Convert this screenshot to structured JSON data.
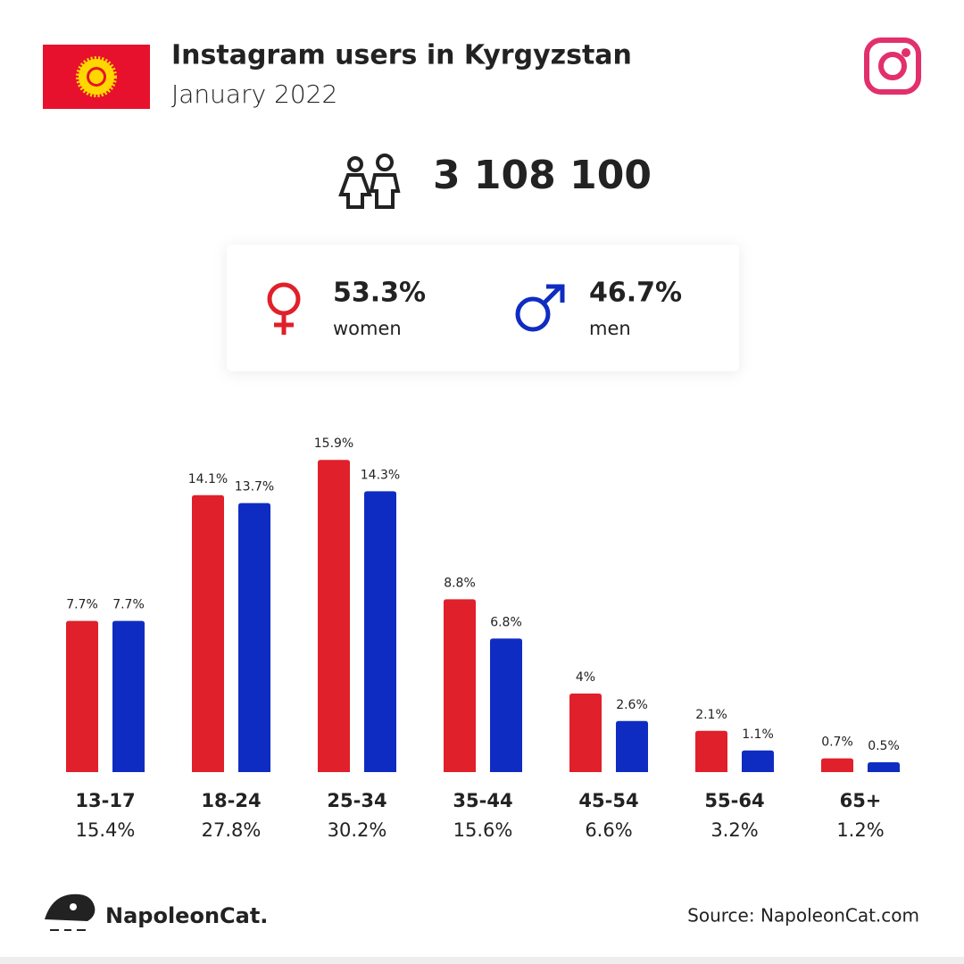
{
  "header": {
    "title": "Instagram users in Kyrgyzstan",
    "subtitle": "January 2022"
  },
  "summary": {
    "total_users": "3 108 100",
    "women": {
      "share": "53.3%",
      "label": "women"
    },
    "men": {
      "share": "46.7%",
      "label": "men"
    }
  },
  "chart_data": {
    "type": "bar",
    "categories": [
      "13-17",
      "18-24",
      "25-34",
      "35-44",
      "45-54",
      "55-64",
      "65+"
    ],
    "category_shares": [
      "15.4%",
      "27.8%",
      "30.2%",
      "15.6%",
      "6.6%",
      "3.2%",
      "1.2%"
    ],
    "series": [
      {
        "color": "#e0202a",
        "values": [
          7.7,
          14.1,
          15.9,
          8.8,
          4,
          2.1,
          0.7
        ],
        "value_labels": [
          "7.7%",
          "14.1%",
          "15.9%",
          "8.8%",
          "4%",
          "2.1%",
          "0.7%"
        ]
      },
      {
        "color": "#0f2cc2",
        "values": [
          7.7,
          13.7,
          14.3,
          6.8,
          2.6,
          1.1,
          0.5
        ],
        "value_labels": [
          "7.7%",
          "13.7%",
          "14.3%",
          "6.8%",
          "2.6%",
          "1.1%",
          "0.5%"
        ]
      }
    ],
    "ylim": [
      0,
      16
    ]
  },
  "footer": {
    "brand": "NapoleonCat.",
    "source": "Source: NapoleonCat.com"
  }
}
